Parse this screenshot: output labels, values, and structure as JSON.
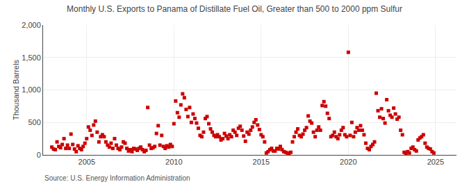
{
  "chart_data": {
    "type": "scatter",
    "title": "Monthly U.S. Exports to Panama of Distillate Fuel Oil, Greater than 500 to 2000 ppm Sulfur",
    "ylabel": "Thousand Barrels",
    "annotations": [
      "Source: U.S. Energy Information Administration"
    ],
    "color": "#cc0000",
    "marker": "square",
    "grid": true,
    "xlim": [
      2002.5,
      2026.2
    ],
    "xticks": [
      2005,
      2010,
      2015,
      2020,
      2025
    ],
    "ylim": [
      0,
      2000
    ],
    "yticks": [
      0,
      500,
      {
        "value": 1000,
        "label": "1,000"
      },
      {
        "value": 1500,
        "label": "1,500"
      },
      {
        "value": 2000,
        "label": "2,000"
      }
    ],
    "x": [
      2003.0,
      2003.1,
      2003.2,
      2003.3,
      2003.4,
      2003.5,
      2003.6,
      2003.7,
      2003.8,
      2003.9,
      2004.0,
      2004.1,
      2004.2,
      2004.3,
      2004.4,
      2004.5,
      2004.6,
      2004.7,
      2004.8,
      2004.9,
      2005.0,
      2005.1,
      2005.2,
      2005.3,
      2005.4,
      2005.5,
      2005.6,
      2005.7,
      2005.8,
      2005.9,
      2006.0,
      2006.1,
      2006.2,
      2006.3,
      2006.4,
      2006.5,
      2006.6,
      2006.7,
      2006.8,
      2006.9,
      2007.0,
      2007.1,
      2007.2,
      2007.3,
      2007.4,
      2007.5,
      2007.6,
      2007.7,
      2007.8,
      2007.9,
      2008.0,
      2008.1,
      2008.2,
      2008.3,
      2008.4,
      2008.5,
      2008.6,
      2008.7,
      2008.8,
      2008.9,
      2009.0,
      2009.1,
      2009.2,
      2009.3,
      2009.4,
      2009.5,
      2009.6,
      2009.7,
      2009.8,
      2009.9,
      2010.0,
      2010.1,
      2010.2,
      2010.3,
      2010.4,
      2010.5,
      2010.6,
      2010.7,
      2010.8,
      2010.9,
      2011.0,
      2011.1,
      2011.2,
      2011.3,
      2011.4,
      2011.5,
      2011.6,
      2011.7,
      2011.8,
      2011.9,
      2012.0,
      2012.1,
      2012.2,
      2012.3,
      2012.4,
      2012.5,
      2012.6,
      2012.7,
      2012.8,
      2012.9,
      2013.0,
      2013.1,
      2013.2,
      2013.3,
      2013.4,
      2013.5,
      2013.6,
      2013.7,
      2013.8,
      2013.9,
      2014.0,
      2014.1,
      2014.2,
      2014.3,
      2014.4,
      2014.5,
      2014.6,
      2014.7,
      2014.8,
      2014.9,
      2015.0,
      2015.1,
      2015.2,
      2015.3,
      2015.4,
      2015.5,
      2015.6,
      2015.7,
      2015.8,
      2015.9,
      2016.0,
      2016.1,
      2016.2,
      2016.3,
      2016.4,
      2016.5,
      2016.6,
      2016.7,
      2016.8,
      2016.9,
      2017.0,
      2017.1,
      2017.2,
      2017.3,
      2017.4,
      2017.5,
      2017.6,
      2017.7,
      2017.8,
      2017.9,
      2018.0,
      2018.1,
      2018.2,
      2018.3,
      2018.4,
      2018.5,
      2018.6,
      2018.7,
      2018.8,
      2018.9,
      2019.0,
      2019.1,
      2019.2,
      2019.3,
      2019.4,
      2019.5,
      2019.6,
      2019.7,
      2019.8,
      2019.9,
      2020.0,
      2020.1,
      2020.2,
      2020.3,
      2020.4,
      2020.5,
      2020.6,
      2020.7,
      2020.8,
      2020.9,
      2021.0,
      2021.1,
      2021.2,
      2021.3,
      2021.4,
      2021.5,
      2021.6,
      2021.7,
      2021.8,
      2021.9,
      2022.0,
      2022.1,
      2022.2,
      2022.3,
      2022.4,
      2022.5,
      2022.6,
      2022.7,
      2022.8,
      2022.9,
      2023.0,
      2023.1,
      2023.2,
      2023.3,
      2023.4,
      2023.5,
      2023.6,
      2023.7,
      2023.8,
      2023.9,
      2024.0,
      2024.1,
      2024.2,
      2024.3,
      2024.4,
      2024.5,
      2024.6,
      2024.7,
      2024.8,
      2024.9
    ],
    "values": [
      120,
      90,
      80,
      200,
      130,
      110,
      160,
      250,
      100,
      150,
      100,
      320,
      160,
      90,
      50,
      140,
      100,
      80,
      130,
      180,
      250,
      430,
      380,
      300,
      460,
      520,
      350,
      200,
      280,
      310,
      280,
      200,
      150,
      120,
      180,
      100,
      250,
      150,
      100,
      80,
      120,
      200,
      180,
      100,
      60,
      80,
      50,
      100,
      90,
      70,
      100,
      120,
      80,
      50,
      70,
      730,
      150,
      100,
      110,
      130,
      330,
      450,
      150,
      300,
      130,
      100,
      140,
      120,
      160,
      130,
      480,
      830,
      650,
      580,
      770,
      940,
      880,
      700,
      590,
      730,
      500,
      630,
      560,
      490,
      410,
      300,
      280,
      350,
      560,
      590,
      480,
      400,
      350,
      300,
      280,
      310,
      280,
      230,
      250,
      330,
      290,
      250,
      310,
      280,
      380,
      350,
      300,
      410,
      440,
      380,
      290,
      210,
      350,
      320,
      380,
      430,
      500,
      540,
      460,
      390,
      310,
      280,
      200,
      30,
      50,
      80,
      100,
      60,
      60,
      100,
      90,
      130,
      80,
      50,
      40,
      30,
      20,
      40,
      200,
      280,
      350,
      400,
      300,
      280,
      320,
      380,
      420,
      600,
      520,
      490,
      350,
      280,
      380,
      430,
      380,
      760,
      820,
      750,
      640,
      560,
      280,
      300,
      350,
      280,
      250,
      310,
      380,
      420,
      310,
      280,
      1580,
      300,
      500,
      280,
      350,
      420,
      380,
      450,
      380,
      310,
      180,
      100,
      80,
      130,
      160,
      200,
      950,
      680,
      580,
      710,
      560,
      490,
      850,
      680,
      610,
      580,
      720,
      630,
      550,
      580,
      380,
      310,
      40,
      20,
      50,
      30,
      100,
      120,
      80,
      60,
      230,
      260,
      280,
      310,
      180,
      120,
      100,
      90,
      50,
      30
    ]
  }
}
